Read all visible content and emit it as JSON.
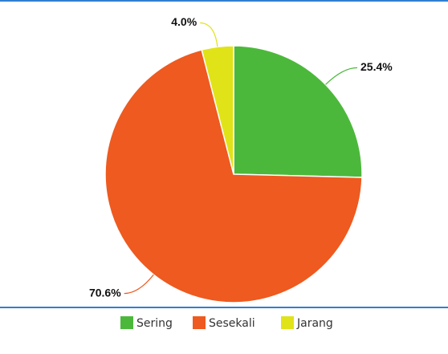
{
  "chart_data": {
    "type": "pie",
    "categories": [
      "Sering",
      "Sesekali",
      "Jarang"
    ],
    "values": [
      25.4,
      70.6,
      4.0
    ],
    "value_labels": [
      "25.4%",
      "70.6%",
      "4.0%"
    ],
    "colors": [
      "#4cb83b",
      "#ee5a1f",
      "#e0e318"
    ],
    "legend": "bottom"
  }
}
